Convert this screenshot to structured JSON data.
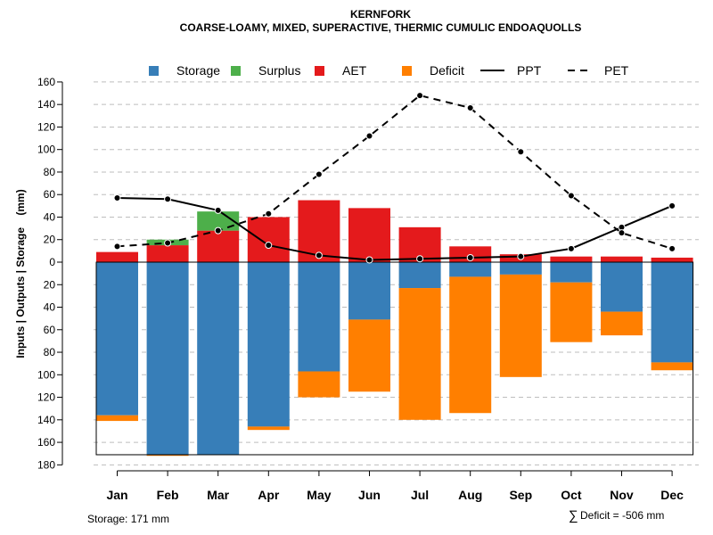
{
  "chart_data": {
    "type": "bar",
    "title": "KERNFORK",
    "subtitle": "COARSE-LOAMY, MIXED, SUPERACTIVE, THERMIC CUMULIC ENDOAQUOLLS",
    "ylabel": "Inputs | Outputs | Storage    (mm)",
    "categories": [
      "Jan",
      "Feb",
      "Mar",
      "Apr",
      "May",
      "Jun",
      "Jul",
      "Aug",
      "Sep",
      "Oct",
      "Nov",
      "Dec"
    ],
    "ylim": [
      -180,
      160
    ],
    "y_ticks": [
      160,
      140,
      120,
      100,
      80,
      60,
      40,
      20,
      0,
      -20,
      -40,
      -60,
      -80,
      -100,
      -120,
      -140,
      -160,
      -180
    ],
    "y_tick_labels": [
      "160",
      "140",
      "120",
      "100",
      "80",
      "60",
      "40",
      "20",
      "0",
      "20",
      "40",
      "60",
      "80",
      "100",
      "120",
      "140",
      "160",
      "180"
    ],
    "grid": true,
    "legend": {
      "position": "top",
      "entries": [
        {
          "label": "Storage",
          "kind": "box",
          "color": "#377eb8"
        },
        {
          "label": "Surplus",
          "kind": "box",
          "color": "#4daf4a"
        },
        {
          "label": "AET",
          "kind": "box",
          "color": "#e41a1c"
        },
        {
          "label": "Deficit",
          "kind": "box",
          "color": "#ff7f00"
        },
        {
          "label": "PPT",
          "kind": "line",
          "dash": "solid"
        },
        {
          "label": "PET",
          "kind": "line",
          "dash": "dashed"
        }
      ]
    },
    "colors": {
      "storage": "#377eb8",
      "surplus": "#4daf4a",
      "aet": "#e41a1c",
      "deficit": "#ff7f00"
    },
    "series": [
      {
        "name": "AET",
        "values": [
          9,
          15,
          28,
          40,
          55,
          48,
          31,
          14,
          7,
          5,
          5,
          4
        ]
      },
      {
        "name": "Surplus",
        "values": [
          0,
          5,
          17,
          0,
          0,
          0,
          0,
          0,
          0,
          0,
          0,
          0
        ]
      },
      {
        "name": "Storage",
        "values": [
          136,
          171,
          171,
          146,
          97,
          51,
          23,
          13,
          11,
          18,
          44,
          89
        ]
      },
      {
        "name": "Deficit",
        "values": [
          5,
          1,
          0,
          3,
          23,
          64,
          117,
          121,
          91,
          53,
          21,
          7
        ]
      },
      {
        "name": "PPT",
        "values": [
          57,
          56,
          46,
          15,
          6,
          2,
          3,
          4,
          5,
          12,
          31,
          50
        ]
      },
      {
        "name": "PET",
        "values": [
          14,
          17,
          28,
          43,
          78,
          112,
          148,
          137,
          98,
          59,
          26,
          12
        ]
      }
    ],
    "storage_capacity": 171,
    "annotations": {
      "storage_note": "Storage: 171 mm",
      "deficit_symbol": "∑",
      "deficit_note": "Deficit = -506 mm"
    }
  }
}
